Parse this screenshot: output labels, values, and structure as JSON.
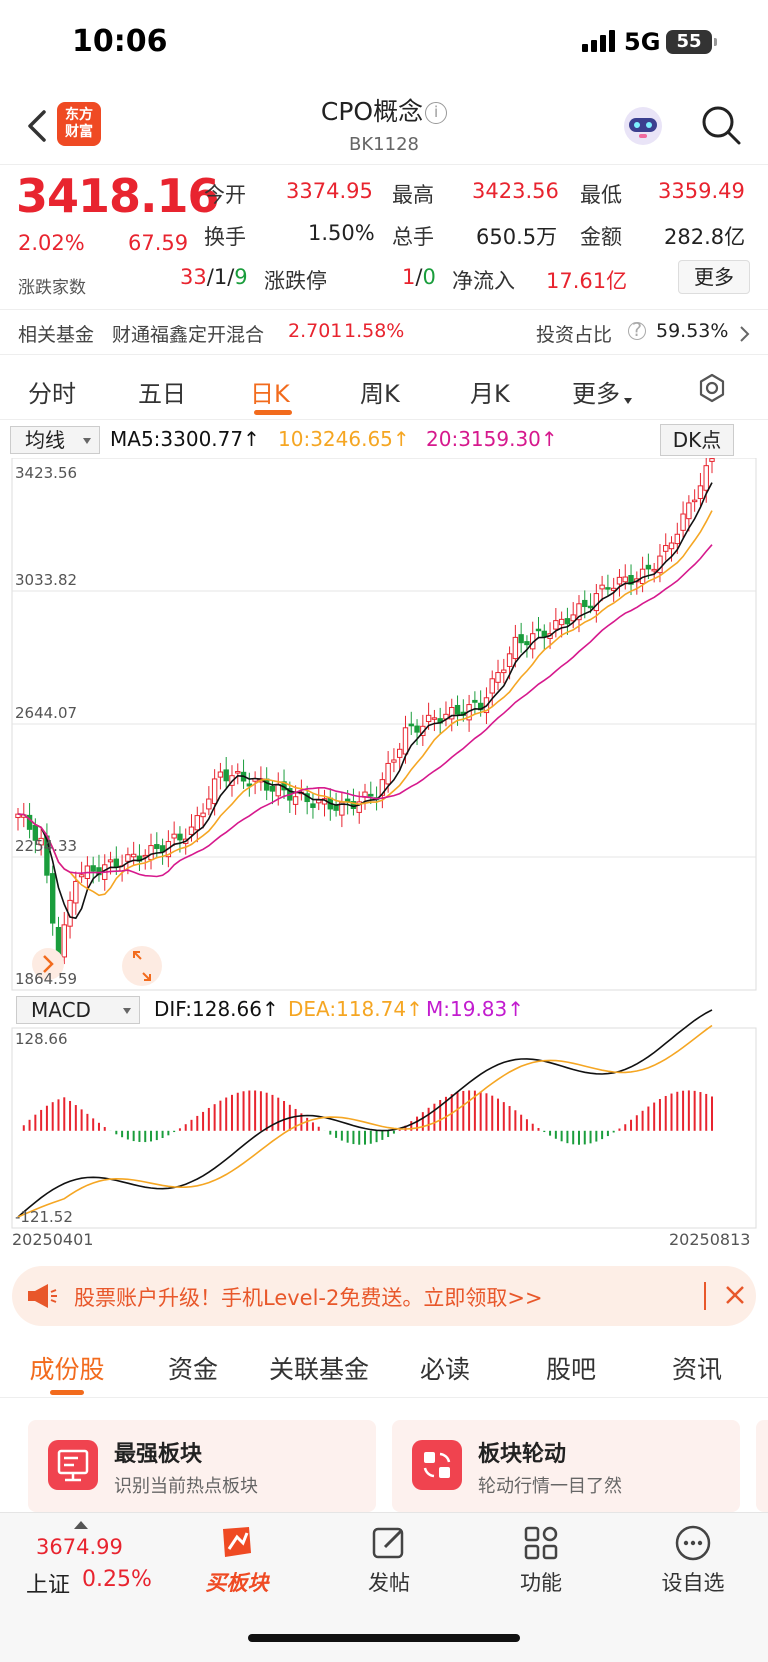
{
  "status": {
    "time": "10:06",
    "network": "5G",
    "battery": "55"
  },
  "nav": {
    "logo_line1": "东方",
    "logo_line2": "财富",
    "title": "CPO概念",
    "code": "BK1128"
  },
  "quote": {
    "price": "3418.16",
    "pct": "2.02%",
    "change": "67.59",
    "breadth_label": "涨跌家数",
    "open_label": "今开",
    "open": "3374.95",
    "high_label": "最高",
    "high": "3423.56",
    "low_label": "最低",
    "low": "3359.49",
    "turnover_label": "换手",
    "turnover": "1.50%",
    "volume_label": "总手",
    "volume": "650.5万",
    "amount_label": "金额",
    "amount": "282.8亿",
    "breadth_up": "33",
    "breadth_sep1": "/",
    "breadth_flat": "1",
    "breadth_sep2": "/",
    "breadth_down": "9",
    "limit_label": "涨跌停",
    "limit_up": "1",
    "limit_sep": "/",
    "limit_down": "0",
    "inflow_label": "净流入",
    "inflow": "17.61亿",
    "more_label": "更多"
  },
  "fund": {
    "label": "相关基金",
    "name": "财通福鑫定开混合",
    "nav": "2.701",
    "pct": "1.58%",
    "ratio_label": "投资占比",
    "qmark": "?",
    "ratio": "59.53%"
  },
  "period_tabs": [
    "分时",
    "五日",
    "日K",
    "周K",
    "月K",
    "更多"
  ],
  "ma": {
    "select": "均线",
    "ma5": "MA5:3300.77↑",
    "ma10": "10:3246.65↑",
    "ma20": "20:3159.30↑",
    "dk": "DK点",
    "colors": {
      "ma5": "#111111",
      "ma10": "#f5a623",
      "ma20": "#d6198d"
    }
  },
  "macd": {
    "select": "MACD",
    "dif": "DIF:128.66↑",
    "dea": "DEA:118.74↑",
    "m": "M:19.83↑",
    "colors": {
      "dif": "#111111",
      "dea": "#f5a623",
      "m": "#c21ccf"
    }
  },
  "chart_data": {
    "type": "candlestick",
    "price_axis_labels": [
      "3423.56",
      "3033.82",
      "2644.07",
      "2254.33",
      "1864.59"
    ],
    "ylim": [
      1864.59,
      3423.56
    ],
    "macd_axis_labels": [
      "128.66",
      "-121.52"
    ],
    "macd_ylim": [
      -121.52,
      128.66
    ],
    "x_start": "20250401",
    "x_end": "20250813",
    "colors": {
      "up": "#e8242f",
      "down": "#1a9d3c"
    }
  },
  "banner": {
    "text": "股票账户升级！手机Level-2免费送。立即领取>>"
  },
  "content_tabs": [
    "成份股",
    "资金",
    "关联基金",
    "必读",
    "股吧",
    "资讯"
  ],
  "cards": [
    {
      "title": "最强板块",
      "subtitle": "识别当前热点板块"
    },
    {
      "title": "板块轮动",
      "subtitle": "轮动行情一目了然"
    }
  ],
  "bottom_nav": {
    "index_value": "3674.99",
    "index_name": "上证",
    "index_pct": "0.25%",
    "items": [
      "买板块",
      "发帖",
      "功能",
      "设自选"
    ]
  }
}
